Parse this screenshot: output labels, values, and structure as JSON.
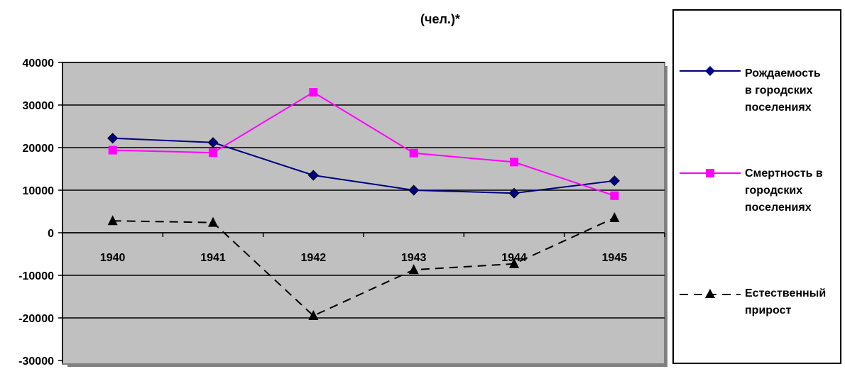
{
  "chart_data": {
    "type": "line",
    "title": "(чел.)*",
    "categories": [
      "1940",
      "1941",
      "1942",
      "1943",
      "1944",
      "1945"
    ],
    "ylim": [
      -30000,
      40000
    ],
    "yticks": [
      40000,
      30000,
      20000,
      10000,
      0,
      -10000,
      -20000,
      -30000
    ],
    "grid": true,
    "legend_position": "right",
    "plot_background": "#c0c0c0",
    "series": [
      {
        "name": "Рождаемость в городских поселениях",
        "color": "#000080",
        "marker": "diamond",
        "dash": "solid",
        "values": [
          22200,
          21200,
          13500,
          10000,
          9300,
          12200
        ]
      },
      {
        "name": "Смертность в городских поселениях",
        "color": "#ff00ff",
        "marker": "square",
        "dash": "solid",
        "values": [
          19400,
          18800,
          33000,
          18700,
          16600,
          8700
        ]
      },
      {
        "name": "Естественный прирост",
        "color": "#000000",
        "marker": "triangle",
        "dash": "dashed",
        "values": [
          2800,
          2400,
          -19500,
          -8700,
          -7300,
          3500
        ]
      }
    ]
  },
  "legend": {
    "items": [
      {
        "lines": [
          "Рождаемость",
          "в городских",
          "поселениях"
        ]
      },
      {
        "lines": [
          "Смертность в",
          "городских",
          "поселениях"
        ]
      },
      {
        "lines": [
          "Естественный",
          "прирост"
        ]
      }
    ]
  }
}
